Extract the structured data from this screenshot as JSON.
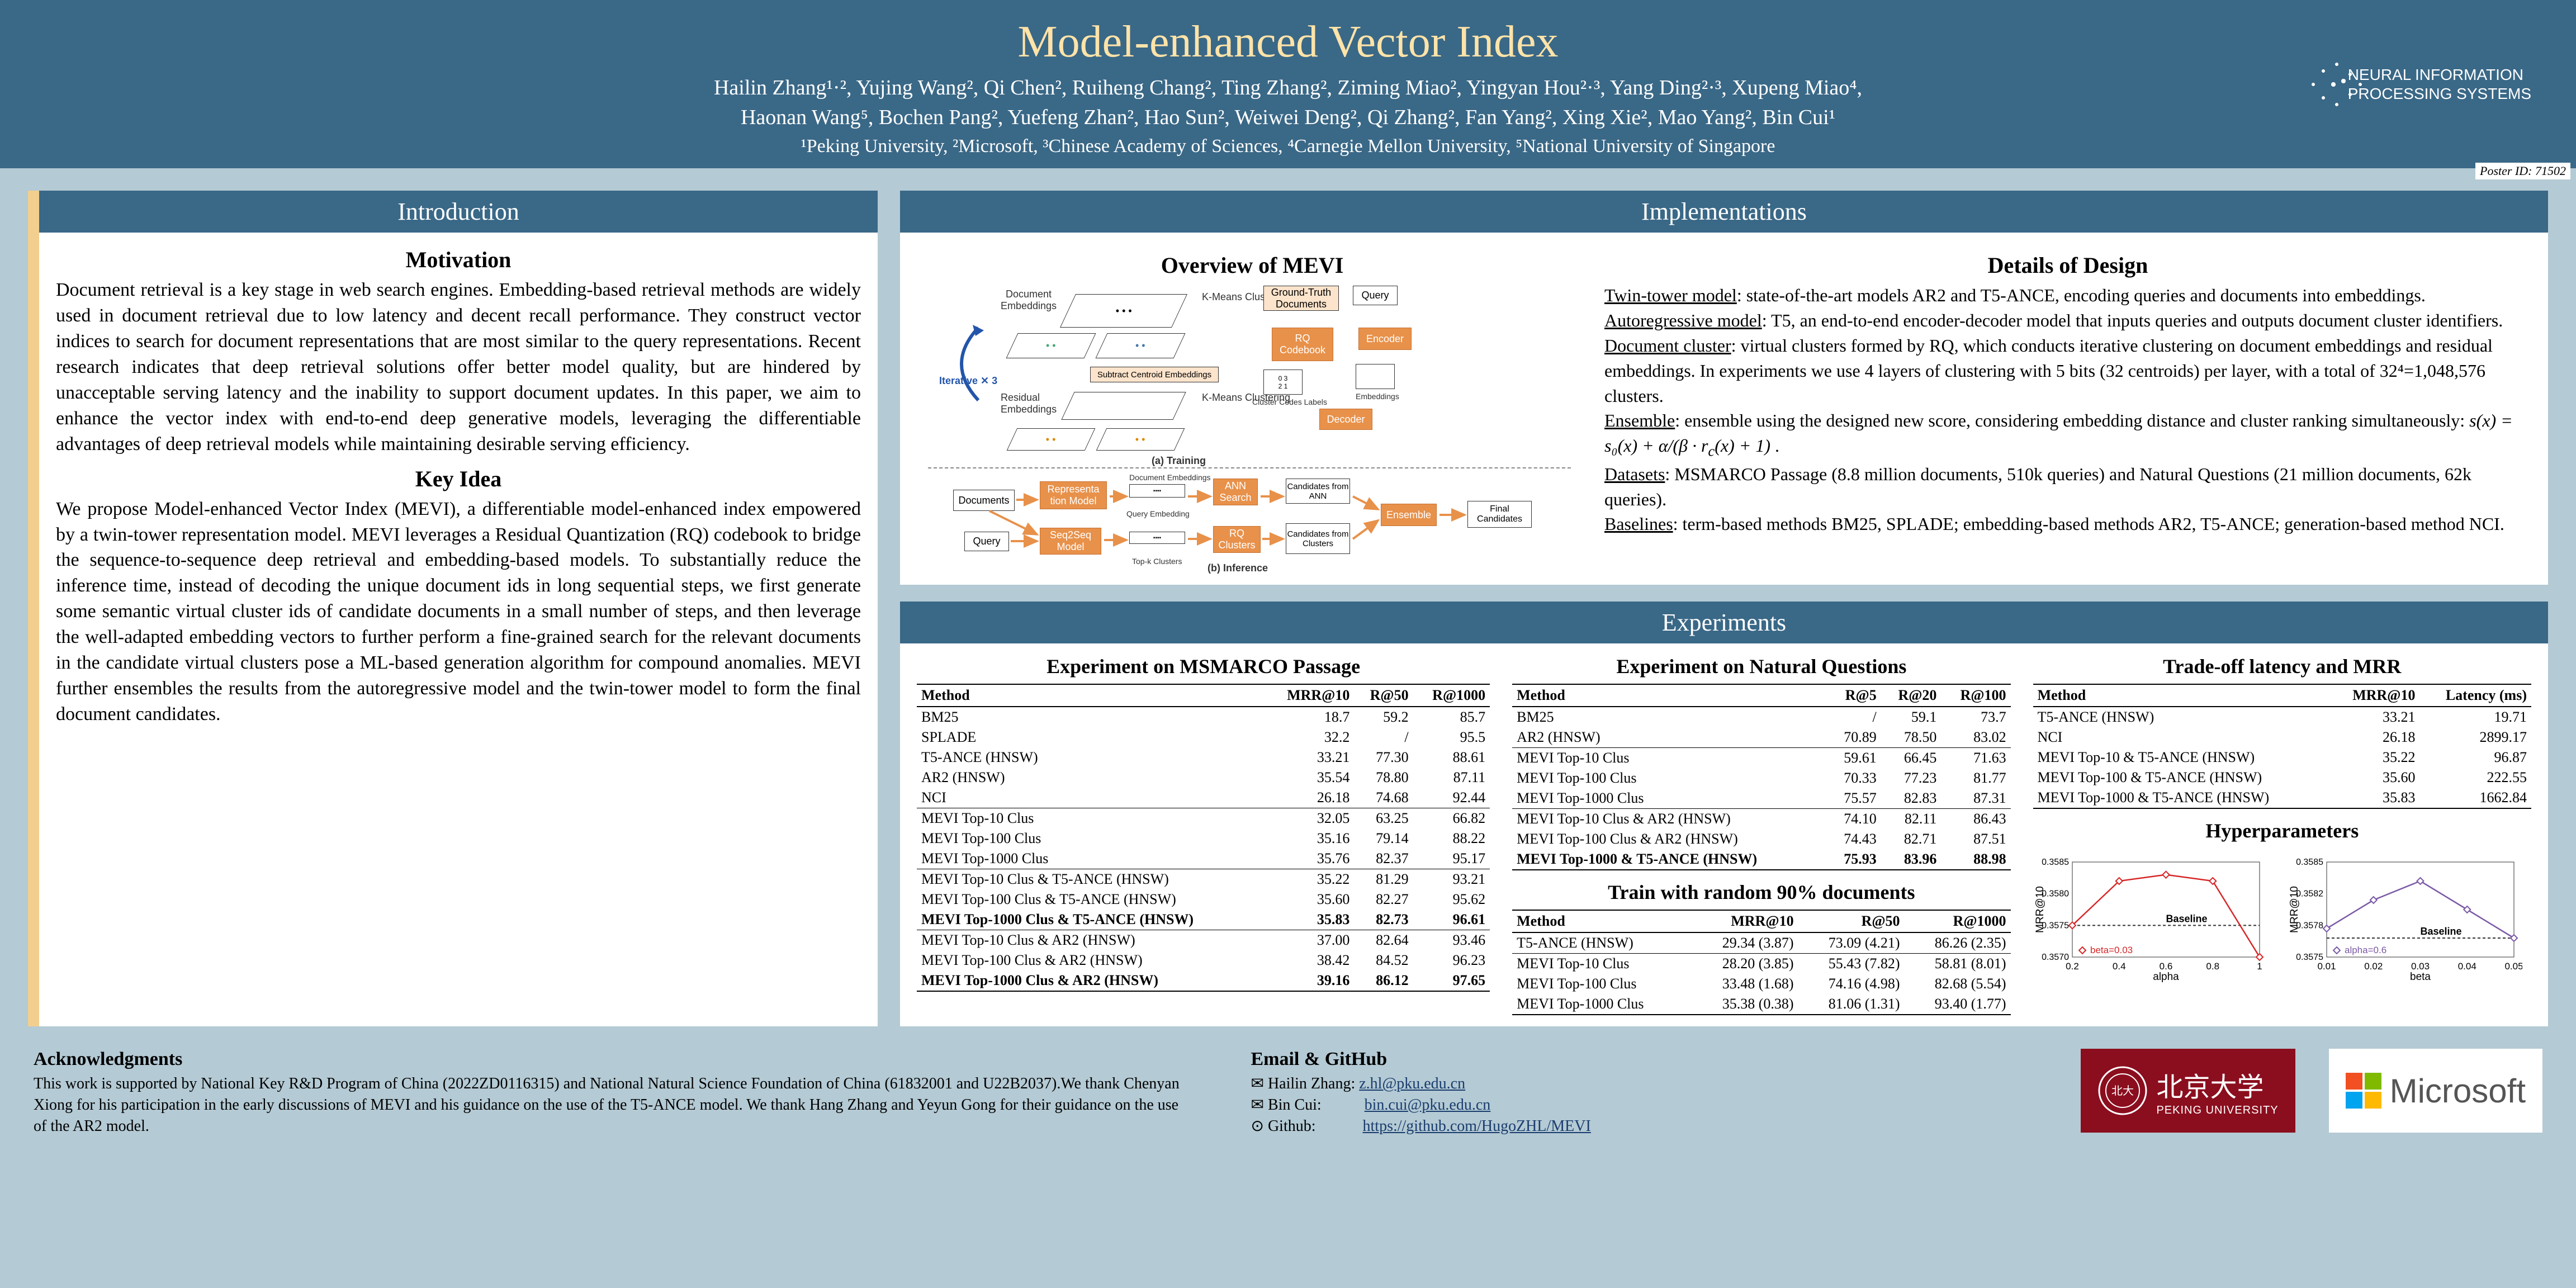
{
  "header": {
    "title": "Model-enhanced Vector Index",
    "authors_line1": "Hailin Zhang¹·², Yujing Wang², Qi Chen², Ruiheng Chang², Ting Zhang², Ziming Miao², Yingyan Hou²·³, Yang Ding²·³, Xupeng Miao⁴,",
    "authors_line2": "Haonan Wang⁵, Bochen Pang², Yuefeng Zhan², Hao Sun², Weiwei Deng², Qi Zhang², Fan Yang², Xing Xie², Mao Yang², Bin Cui¹",
    "affiliations": "¹Peking University, ²Microsoft, ³Chinese Academy of Sciences, ⁴Carnegie Mellon University, ⁵National University of Singapore",
    "neurips": "NEURAL INFORMATION\nPROCESSING SYSTEMS",
    "poster_id": "Poster ID: 71502"
  },
  "intro": {
    "header": "Introduction",
    "motivation_title": "Motivation",
    "motivation_text": "Document retrieval is a key stage in web search engines. Embedding-based retrieval methods are widely used in document retrieval due to low latency and decent recall performance. They construct vector indices to search for document representations that are most similar to the query representations. Recent research indicates that deep retrieval solutions offer better model quality, but are hindered by unacceptable serving latency and the inability to support document updates. In this paper, we aim to enhance the vector index with end-to-end deep generative models, leveraging the differentiable advantages of deep retrieval models while maintaining desirable serving efficiency.",
    "keyidea_title": "Key Idea",
    "keyidea_text": "We propose Model-enhanced Vector Index (MEVI), a differentiable model-enhanced index empowered by a twin-tower representation model. MEVI leverages a Residual Quantization (RQ) codebook to bridge the sequence-to-sequence deep retrieval and embedding-based models. To substantially reduce the inference time, instead of decoding the unique document ids in long sequential steps, we first generate some semantic virtual cluster ids of candidate documents in a small number of steps, and then leverage the well-adapted embedding vectors to further perform a fine-grained search for the relevant documents in the candidate virtual clusters pose a ML-based generation algorithm for compound anomalies. MEVI further ensembles the results from the autoregressive model and the twin-tower model to form the final document candidates."
  },
  "impl": {
    "header": "Implementations",
    "overview_title": "Overview of MEVI",
    "diagram": {
      "labels": {
        "doc_emb": "Document\nEmbeddings",
        "kmeans1": "K-Means\nClustering",
        "gt_docs": "Ground-Truth\nDocuments",
        "query": "Query",
        "rq_codebook": "RQ\nCodebook",
        "encoder": "Encoder",
        "subtract": "Subtract Centroid Embeddings",
        "iterative": "Iterative ✕ 3",
        "residual": "Residual\nEmbeddings",
        "kmeans2": "K-Means\nClustering",
        "cluster_labels": "Cluster Codes Labels",
        "embeddings": "Embeddings",
        "decoder": "Decoder",
        "training": "(a) Training",
        "documents": "Documents",
        "repr_model": "Representa\ntion Model",
        "doc_embeddings2": "Document\nEmbeddings",
        "ann_search": "ANN\nSearch",
        "cand_ann": "Candidates\nfrom ANN",
        "ensemble": "Ensemble",
        "final_cand": "Final\nCandidates",
        "query2": "Query",
        "seq2seq": "Seq2Seq\nModel",
        "query_emb": "Query Embedding",
        "topk": "Top-k Clusters",
        "rq_clusters": "RQ\nClusters",
        "cand_clusters": "Candidates\nfrom\nClusters",
        "inference": "(b) Inference"
      }
    },
    "details_title": "Details of Design",
    "twin_tower": "Twin-tower model: state-of-the-art models AR2 and T5-ANCE, encoding queries and documents into embeddings.",
    "autoregressive": "Autoregressive model: T5, an end-to-end encoder-decoder model that inputs queries and outputs document cluster identifiers.",
    "doc_cluster": "Document cluster: virtual clusters formed by RQ, which conducts iterative clustering on document embeddings and residual embeddings. In experiments we use 4 layers of clustering with 5 bits (32 centroids) per layer, with a total of 32⁴=1,048,576 clusters.",
    "ensemble": "Ensemble: ensemble using the designed new score, considering embedding distance and cluster ranking simultaneously:  s(x) = s₀(x) + α/(β · rᶜ(x) + 1)  .",
    "datasets": "Datasets: MSMARCO Passage (8.8 million documents, 510k queries) and Natural Questions (21 million documents, 62k queries).",
    "baselines": "Baselines: term-based methods BM25, SPLADE; embedding-based methods AR2, T5-ANCE; generation-based method NCI."
  },
  "exp": {
    "header": "Experiments",
    "msmarco_title": "Experiment on MSMARCO Passage",
    "msmarco": {
      "columns": [
        "Method",
        "MRR@10",
        "R@50",
        "R@1000"
      ],
      "rows": [
        [
          "BM25",
          "18.7",
          "59.2",
          "85.7"
        ],
        [
          "SPLADE",
          "32.2",
          "/",
          "95.5"
        ],
        [
          "T5-ANCE (HNSW)",
          "33.21",
          "77.30",
          "88.61"
        ],
        [
          "AR2 (HNSW)",
          "35.54",
          "78.80",
          "87.11"
        ],
        [
          "NCI",
          "26.18",
          "74.68",
          "92.44"
        ],
        [
          "MEVI Top-10 Clus",
          "32.05",
          "63.25",
          "66.82"
        ],
        [
          "MEVI Top-100 Clus",
          "35.16",
          "79.14",
          "88.22"
        ],
        [
          "MEVI Top-1000 Clus",
          "35.76",
          "82.37",
          "95.17"
        ],
        [
          "MEVI Top-10 Clus & T5-ANCE (HNSW)",
          "35.22",
          "81.29",
          "93.21"
        ],
        [
          "MEVI Top-100 Clus & T5-ANCE (HNSW)",
          "35.60",
          "82.27",
          "95.62"
        ],
        [
          "MEVI Top-1000 Clus & T5-ANCE (HNSW)",
          "35.83",
          "82.73",
          "96.61"
        ],
        [
          "MEVI Top-10 Clus & AR2 (HNSW)",
          "37.00",
          "82.64",
          "93.46"
        ],
        [
          "MEVI Top-100 Clus & AR2 (HNSW)",
          "38.42",
          "84.52",
          "96.23"
        ],
        [
          "MEVI Top-1000 Clus & AR2 (HNSW)",
          "39.16",
          "86.12",
          "97.65"
        ]
      ]
    },
    "nq_title": "Experiment on Natural Questions",
    "nq": {
      "columns": [
        "Method",
        "R@5",
        "R@20",
        "R@100"
      ],
      "rows": [
        [
          "BM25",
          "/",
          "59.1",
          "73.7"
        ],
        [
          "AR2 (HNSW)",
          "70.89",
          "78.50",
          "83.02"
        ],
        [
          "MEVI Top-10 Clus",
          "59.61",
          "66.45",
          "71.63"
        ],
        [
          "MEVI Top-100 Clus",
          "70.33",
          "77.23",
          "81.77"
        ],
        [
          "MEVI Top-1000 Clus",
          "75.57",
          "82.83",
          "87.31"
        ],
        [
          "MEVI Top-10 Clus & AR2 (HNSW)",
          "74.10",
          "82.11",
          "86.43"
        ],
        [
          "MEVI Top-100 Clus & AR2 (HNSW)",
          "74.43",
          "82.71",
          "87.51"
        ],
        [
          "MEVI Top-1000 & T5-ANCE (HNSW)",
          "75.93",
          "83.96",
          "88.98"
        ]
      ]
    },
    "random_title": "Train with random 90% documents",
    "random": {
      "columns": [
        "Method",
        "MRR@10",
        "R@50",
        "R@1000"
      ],
      "rows": [
        [
          "T5-ANCE (HNSW)",
          "29.34 (3.87)",
          "73.09 (4.21)",
          "86.26 (2.35)"
        ],
        [
          "MEVI Top-10 Clus",
          "28.20 (3.85)",
          "55.43 (7.82)",
          "58.81 (8.01)"
        ],
        [
          "MEVI Top-100 Clus",
          "33.48 (1.68)",
          "74.16 (4.98)",
          "82.68 (5.54)"
        ],
        [
          "MEVI Top-1000 Clus",
          "35.38 (0.38)",
          "81.06 (1.31)",
          "93.40 (1.77)"
        ]
      ]
    },
    "latency_title": "Trade-off latency and MRR",
    "latency": {
      "columns": [
        "Method",
        "MRR@10",
        "Latency (ms)"
      ],
      "rows": [
        [
          "T5-ANCE (HNSW)",
          "33.21",
          "19.71"
        ],
        [
          "NCI",
          "26.18",
          "2899.17"
        ],
        [
          "MEVI Top-10 & T5-ANCE (HNSW)",
          "35.22",
          "96.87"
        ],
        [
          "MEVI Top-100 & T5-ANCE (HNSW)",
          "35.60",
          "222.55"
        ],
        [
          "MEVI Top-1000 & T5-ANCE (HNSW)",
          "35.83",
          "1662.84"
        ]
      ]
    },
    "hyper_title": "Hyperparameters",
    "chart_alpha": {
      "type": "line",
      "xlabel": "alpha",
      "ylabel": "MRR@10",
      "x": [
        0.2,
        0.4,
        0.6,
        0.8,
        1.0
      ],
      "y": [
        0.3575,
        0.3582,
        0.3583,
        0.3582,
        0.357
      ],
      "baseline_y": 0.3575,
      "line_color": "#d62728",
      "marker": "diamond",
      "legend": "beta=0.03",
      "baseline_label": "Baseline",
      "ylim": [
        0.357,
        0.3585
      ],
      "fontsize": 18
    },
    "chart_beta": {
      "type": "line",
      "xlabel": "beta",
      "ylabel": "MRR@10",
      "x": [
        0.01,
        0.02,
        0.03,
        0.04,
        0.05
      ],
      "y": [
        0.3578,
        0.3581,
        0.3583,
        0.358,
        0.3577
      ],
      "baseline_y": 0.3577,
      "line_color": "#7b5aa6",
      "marker": "diamond",
      "legend": "alpha=0.6",
      "baseline_label": "Baseline",
      "ylim": [
        0.3575,
        0.3585
      ],
      "fontsize": 18
    }
  },
  "footer": {
    "ack_title": "Acknowledgments",
    "ack_text": "This work is supported by National Key R&D Program of China (2022ZD0116315) and National Natural Science Foundation of China (61832001 and U22B2037).We thank Chenyan Xiong for his participation in the early discussions of MEVI and his guidance on the use of the T5-ANCE model. We thank Hang Zhang and Yeyun Gong for their guidance on the use of the AR2 model.",
    "email_title": "Email & GitHub",
    "email_hailin_label": "✉ Hailin Zhang:",
    "email_hailin": "z.hl@pku.edu.cn",
    "email_bin_label": "✉ Bin Cui:",
    "email_bin": "bin.cui@pku.edu.cn",
    "github_label": "⊙ Github:",
    "github": "https://github.com/HugoZHL/MEVI",
    "pku_text": "北京大学",
    "pku_sub": "PEKING UNIVERSITY",
    "ms_text": "Microsoft",
    "ms_colors": [
      "#f25022",
      "#7fba00",
      "#00a4ef",
      "#ffb900"
    ]
  }
}
